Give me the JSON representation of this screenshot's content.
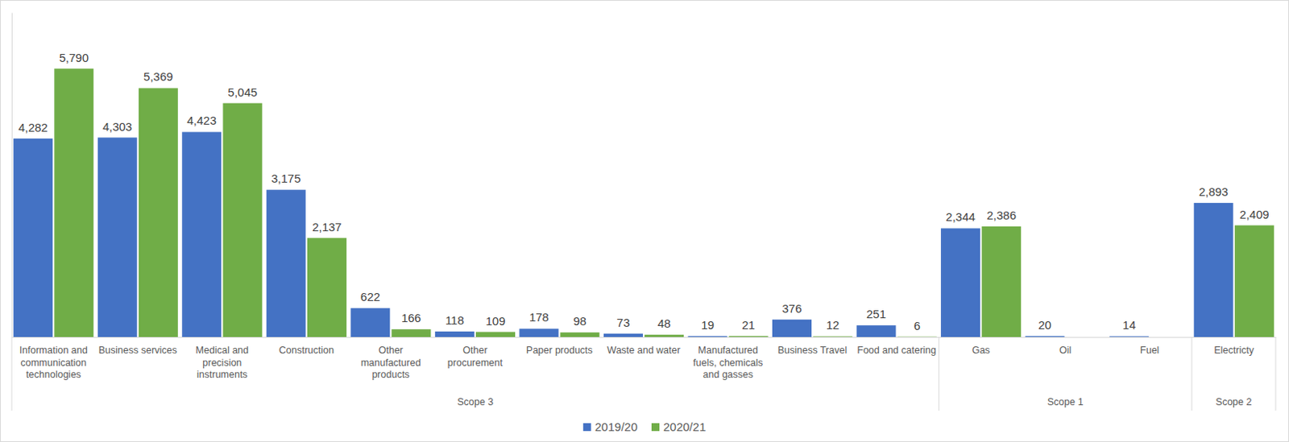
{
  "chart_data": {
    "type": "bar",
    "categories": [
      "Information and communication technologies",
      "Business services",
      "Medical and precision instruments",
      "Construction",
      "Other manufactured products",
      "Other procurement",
      "Paper products",
      "Waste and water",
      "Manufactured fuels, chemicals and gasses",
      "Business Travel",
      "Food and catering",
      "Gas",
      "Oil",
      "Fuel",
      "Electricty"
    ],
    "category_groups": [
      "Scope 3",
      "Scope 3",
      "Scope 3",
      "Scope 3",
      "Scope 3",
      "Scope 3",
      "Scope 3",
      "Scope 3",
      "Scope 3",
      "Scope 3",
      "Scope 3",
      "Scope 1",
      "Scope 1",
      "Scope 1",
      "Scope 2"
    ],
    "series": [
      {
        "name": "2019/20",
        "color": "#4472c4",
        "values": [
          4282,
          4303,
          4423,
          3175,
          622,
          118,
          178,
          73,
          19,
          376,
          251,
          2344,
          20,
          14,
          2893
        ],
        "value_labels": [
          "4,282",
          "4,303",
          "4,423",
          "3,175",
          "622",
          "118",
          "178",
          "73",
          "19",
          "376",
          "251",
          "2,344",
          "20",
          "14",
          "2,893"
        ]
      },
      {
        "name": "2020/21",
        "color": "#70ad47",
        "values": [
          5790,
          5369,
          5045,
          2137,
          166,
          109,
          98,
          48,
          21,
          12,
          6,
          2386,
          null,
          null,
          2409
        ],
        "value_labels": [
          "5,790",
          "5,369",
          "5,045",
          "2,137",
          "166",
          "109",
          "98",
          "48",
          "21",
          "12",
          "6",
          "2,386",
          null,
          null,
          "2,409"
        ]
      }
    ],
    "ylim": [
      0,
      7000
    ],
    "grid": false,
    "data_labels": true,
    "tick_labels": "x",
    "legend": "bottom"
  }
}
